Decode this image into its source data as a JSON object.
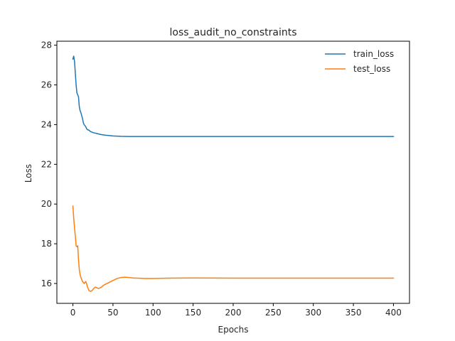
{
  "chart_data": {
    "type": "line",
    "title": "loss_audit_no_constraints",
    "xlabel": "Epochs",
    "ylabel": "Loss",
    "xlim": [
      -20,
      420
    ],
    "ylim": [
      15.0,
      28.2
    ],
    "xticks": [
      0,
      50,
      100,
      150,
      200,
      250,
      300,
      350,
      400
    ],
    "yticks": [
      16,
      18,
      20,
      22,
      24,
      26,
      28
    ],
    "grid": false,
    "legend": "top-right",
    "series": [
      {
        "name": "train_loss",
        "color": "#1f77b4",
        "points": [
          [
            0,
            27.3
          ],
          [
            1,
            27.45
          ],
          [
            2,
            27.2
          ],
          [
            3,
            26.6
          ],
          [
            4,
            26.0
          ],
          [
            5,
            25.6
          ],
          [
            6,
            25.5
          ],
          [
            7,
            25.4
          ],
          [
            8,
            24.9
          ],
          [
            9,
            24.7
          ],
          [
            10,
            24.6
          ],
          [
            11,
            24.45
          ],
          [
            12,
            24.3
          ],
          [
            13,
            24.1
          ],
          [
            14,
            24.0
          ],
          [
            15,
            23.95
          ],
          [
            16,
            23.9
          ],
          [
            17,
            23.8
          ],
          [
            18,
            23.75
          ],
          [
            20,
            23.72
          ],
          [
            22,
            23.65
          ],
          [
            25,
            23.6
          ],
          [
            28,
            23.57
          ],
          [
            30,
            23.55
          ],
          [
            35,
            23.5
          ],
          [
            40,
            23.47
          ],
          [
            45,
            23.45
          ],
          [
            50,
            23.43
          ],
          [
            60,
            23.41
          ],
          [
            70,
            23.4
          ],
          [
            80,
            23.4
          ],
          [
            100,
            23.4
          ],
          [
            150,
            23.4
          ],
          [
            200,
            23.4
          ],
          [
            250,
            23.4
          ],
          [
            300,
            23.4
          ],
          [
            350,
            23.4
          ],
          [
            400,
            23.4
          ]
        ]
      },
      {
        "name": "test_loss",
        "color": "#ff7f0e",
        "points": [
          [
            0,
            19.9
          ],
          [
            1,
            19.3
          ],
          [
            2,
            18.8
          ],
          [
            3,
            18.4
          ],
          [
            4,
            17.9
          ],
          [
            5,
            17.85
          ],
          [
            6,
            17.9
          ],
          [
            7,
            17.2
          ],
          [
            8,
            16.7
          ],
          [
            9,
            16.45
          ],
          [
            10,
            16.3
          ],
          [
            11,
            16.2
          ],
          [
            12,
            16.1
          ],
          [
            13,
            16.05
          ],
          [
            14,
            16.0
          ],
          [
            15,
            16.05
          ],
          [
            16,
            16.1
          ],
          [
            17,
            16.0
          ],
          [
            18,
            15.85
          ],
          [
            19,
            15.75
          ],
          [
            20,
            15.65
          ],
          [
            22,
            15.6
          ],
          [
            24,
            15.65
          ],
          [
            26,
            15.75
          ],
          [
            28,
            15.82
          ],
          [
            30,
            15.78
          ],
          [
            32,
            15.75
          ],
          [
            35,
            15.8
          ],
          [
            38,
            15.9
          ],
          [
            40,
            15.95
          ],
          [
            45,
            16.05
          ],
          [
            50,
            16.15
          ],
          [
            55,
            16.25
          ],
          [
            60,
            16.3
          ],
          [
            65,
            16.32
          ],
          [
            70,
            16.3
          ],
          [
            75,
            16.28
          ],
          [
            80,
            16.27
          ],
          [
            90,
            16.25
          ],
          [
            100,
            16.25
          ],
          [
            120,
            16.27
          ],
          [
            150,
            16.28
          ],
          [
            200,
            16.27
          ],
          [
            250,
            16.27
          ],
          [
            300,
            16.27
          ],
          [
            350,
            16.27
          ],
          [
            400,
            16.27
          ]
        ]
      }
    ]
  }
}
